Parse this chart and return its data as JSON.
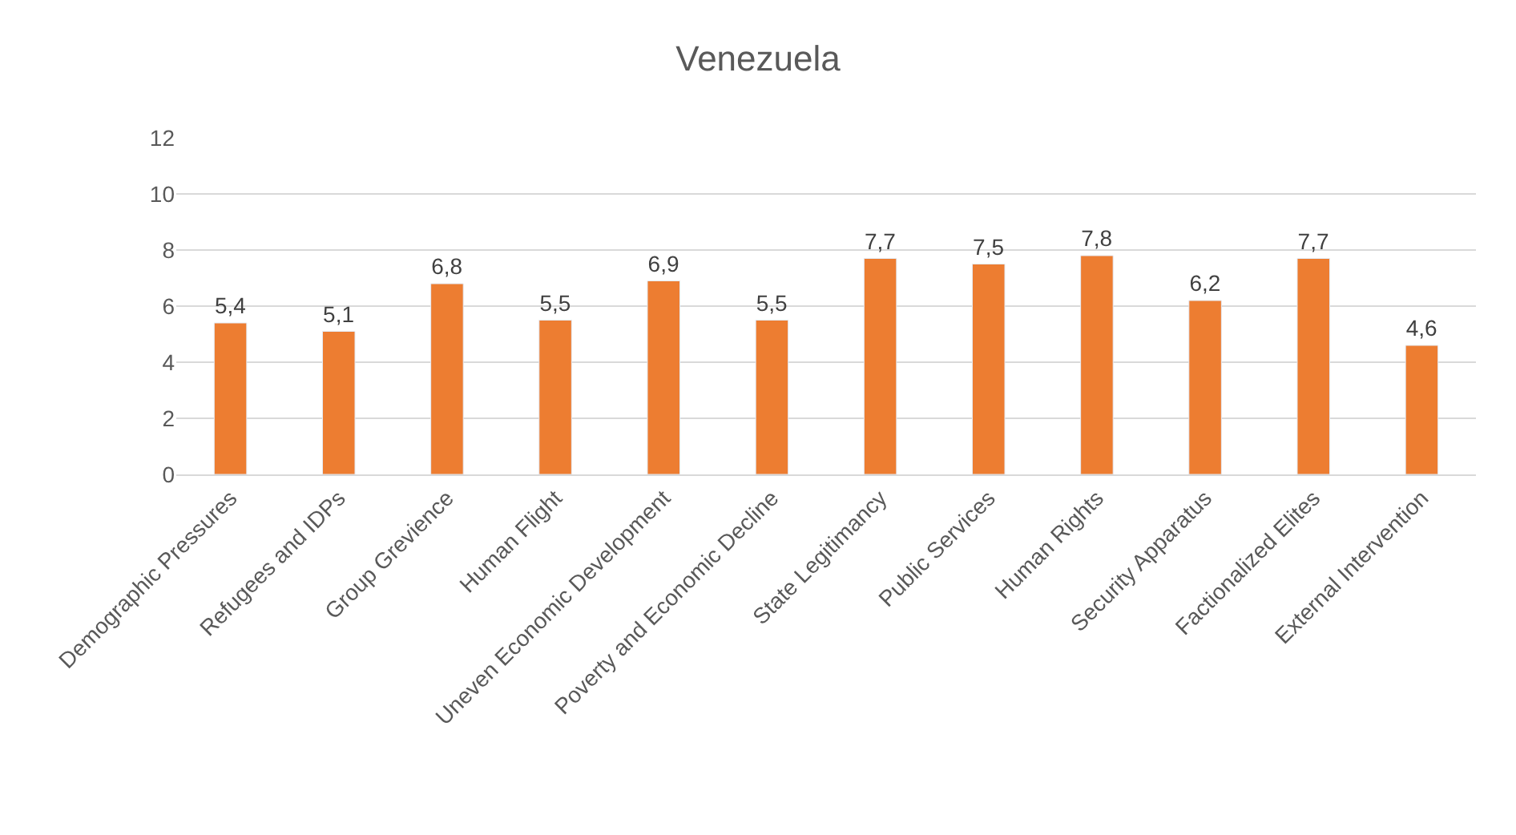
{
  "chart_data": {
    "type": "bar",
    "title": "Venezuela",
    "categories": [
      "Demographic Pressures",
      "Refugees and IDPs",
      "Group Grevience",
      "Human Flight",
      "Uneven Economic Development",
      "Poverty and Economic Decline",
      "State Legitimancy",
      "Public Services",
      "Human Rights",
      "Security Apparatus",
      "Factionalized Elites",
      "External Intervention"
    ],
    "values": [
      5.4,
      5.1,
      6.8,
      5.5,
      6.9,
      5.5,
      7.7,
      7.5,
      7.8,
      6.2,
      7.7,
      4.6
    ],
    "value_labels": [
      "5,4",
      "5,1",
      "6,8",
      "5,5",
      "6,9",
      "5,5",
      "7,7",
      "7,5",
      "7,8",
      "6,2",
      "7,7",
      "4,6"
    ],
    "color": "#ed7d31",
    "ylim": [
      0,
      12
    ],
    "yticks": [
      0,
      2,
      4,
      6,
      8,
      10,
      12
    ],
    "grid": "y",
    "legend": false
  }
}
